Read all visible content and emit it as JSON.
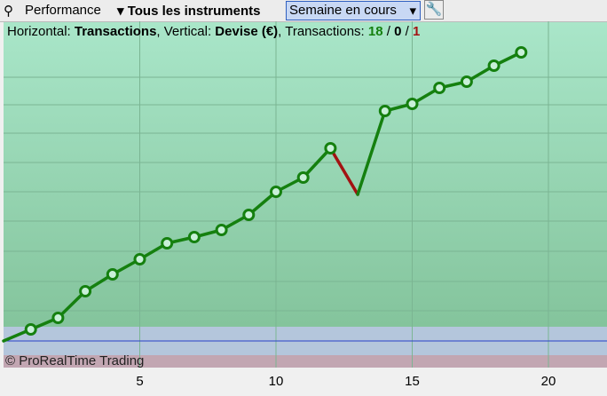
{
  "toolbar": {
    "menu": "Performance",
    "instruments": "Tous les instruments",
    "period": "Semaine en cours"
  },
  "info": {
    "h_label": "Horizontal:",
    "h_value": "Transactions",
    "v_label": ", Vertical:",
    "v_value": "Devise (€)",
    "t_label": ", Transactions:",
    "sep": "/",
    "winning": 18,
    "neutral": 0,
    "losing": 1
  },
  "copyright": "© ProRealTime Trading",
  "chart_data": {
    "type": "line",
    "x": [
      0,
      1,
      2,
      3,
      4,
      5,
      6,
      7,
      8,
      9,
      10,
      11,
      12,
      13,
      14,
      15,
      16,
      17,
      18,
      19
    ],
    "values": [
      0,
      13,
      26,
      56,
      75,
      92,
      110,
      117,
      125,
      142,
      168,
      184,
      217,
      165,
      259,
      267,
      285,
      292,
      310,
      325
    ],
    "gain_color": "#15800f",
    "loss_color": "#a31212",
    "xlim": [
      0,
      22.15
    ],
    "ylim": [
      -30,
      360
    ],
    "xticks": [
      5,
      10,
      15,
      20
    ],
    "grid": true
  }
}
